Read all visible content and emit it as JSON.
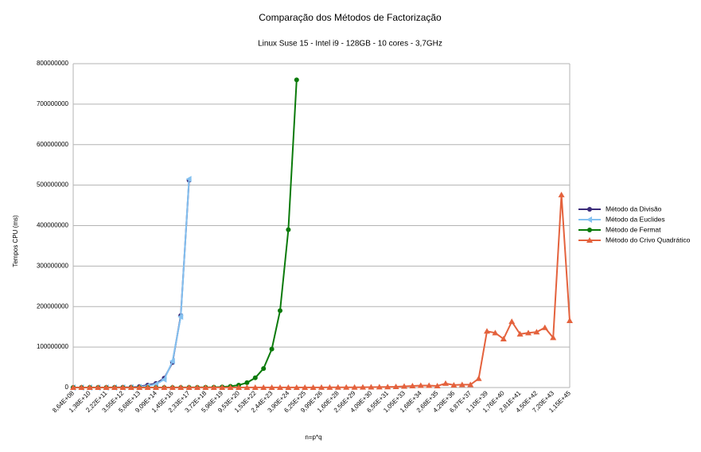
{
  "chart_data": {
    "type": "line",
    "title": "Comparação dos Métodos de Factorização",
    "subtitle": "Linux Suse 15 -  Intel i9 -  128GB - 10 cores - 3,7GHz",
    "y_label": "Tempos CPU (ms)",
    "x_label": "n=p*q",
    "categories": [
      "8,64E+08",
      null,
      "1,38E+10",
      null,
      "2,22E+11",
      null,
      "3,55E+12",
      null,
      "5,68E+13",
      null,
      "9,09E+14",
      null,
      "1,45E+16",
      null,
      "2,33E+17",
      null,
      "3,72E+18",
      null,
      "5,96E+19",
      null,
      "9,53E+20",
      null,
      "1,53E+22",
      null,
      "2,44E+23",
      null,
      "3,90E+24",
      null,
      "6,25E+25",
      null,
      "9,99E+26",
      null,
      "1,60E+28",
      null,
      "2,56E+29",
      null,
      "4,09E+30",
      null,
      "6,55E+31",
      null,
      "1,05E+33",
      null,
      "1,68E+34",
      null,
      "2,68E+35",
      null,
      "4,29E+36",
      null,
      "6,87E+37",
      null,
      "1,10E+39",
      null,
      "1,76E+40",
      null,
      "2,81E+41",
      null,
      "4,50E+42",
      null,
      "7,20E+43",
      null,
      "1,15E+45"
    ],
    "series": [
      {
        "name": "Método da Divisão",
        "color": "#3b2c7a",
        "marker": "circle",
        "values": [
          2000,
          5000,
          10000,
          30000,
          60000,
          150000,
          400000,
          1000000,
          2500000,
          6000000,
          10000000,
          23000000,
          62000000,
          178000000,
          512000000,
          null,
          null,
          null,
          null,
          null,
          null,
          null,
          null,
          null,
          null,
          null,
          null,
          null,
          null,
          null,
          null,
          null,
          null,
          null,
          null,
          null,
          null,
          null,
          null,
          null,
          null,
          null,
          null,
          null,
          null,
          null,
          null,
          null,
          null,
          null,
          null,
          null,
          null,
          null,
          null,
          null,
          null,
          null,
          null,
          null,
          null
        ]
      },
      {
        "name": "Método da Euclides",
        "color": "#84c1f0",
        "marker": "triangle-left",
        "values": [
          1000,
          3000,
          7000,
          20000,
          40000,
          100000,
          300000,
          700000,
          1500000,
          4000000,
          8000000,
          20000000,
          65000000,
          175000000,
          515000000,
          null,
          null,
          null,
          null,
          null,
          null,
          null,
          null,
          null,
          null,
          null,
          null,
          null,
          null,
          null,
          null,
          null,
          null,
          null,
          null,
          null,
          null,
          null,
          null,
          null,
          null,
          null,
          null,
          null,
          null,
          null,
          null,
          null,
          null,
          null,
          null,
          null,
          null,
          null,
          null,
          null,
          null,
          null,
          null,
          null,
          null
        ]
      },
      {
        "name": "Método de Fermat",
        "color": "#0a7a0a",
        "marker": "circle",
        "values": [
          1000,
          1000,
          1000,
          2000,
          2000,
          3000,
          5000,
          8000,
          10000,
          20000,
          30000,
          50000,
          80000,
          120000,
          200000,
          300000,
          500000,
          800000,
          1500000,
          3000000,
          6000000,
          12000000,
          24000000,
          47000000,
          95000000,
          190000000,
          390000000,
          760000000,
          null,
          null,
          null,
          null,
          null,
          null,
          null,
          null,
          null,
          null,
          null,
          null,
          null,
          null,
          null,
          null,
          null,
          null,
          null,
          null,
          null,
          null,
          null,
          null,
          null,
          null,
          null,
          null,
          null,
          null,
          null,
          null,
          null
        ]
      },
      {
        "name": "Método do Crivo Quadrático",
        "color": "#e4623d",
        "marker": "triangle",
        "values": [
          100000,
          100000,
          100000,
          100000,
          100000,
          100000,
          100000,
          100000,
          100000,
          100000,
          100000,
          100000,
          100000,
          100000,
          100000,
          100000,
          100000,
          100000,
          100000,
          100000,
          100000,
          100000,
          100000,
          100000,
          100000,
          100000,
          100000,
          100000,
          100000,
          100000,
          200000,
          300000,
          400000,
          500000,
          600000,
          800000,
          1000000,
          1200000,
          1500000,
          2000000,
          3000000,
          4000000,
          5000000,
          5000000,
          4000000,
          10000000,
          6000000,
          7000000,
          7000000,
          22000000,
          139000000,
          135000000,
          120000000,
          163000000,
          132000000,
          135000000,
          137000000,
          148000000,
          123000000,
          476000000,
          165000000
        ]
      }
    ],
    "ylim": [
      0,
      800000000
    ],
    "yticks": [
      0,
      100000000,
      200000000,
      300000000,
      400000000,
      500000000,
      600000000,
      700000000,
      800000000
    ],
    "grid": true,
    "legend": "right"
  }
}
